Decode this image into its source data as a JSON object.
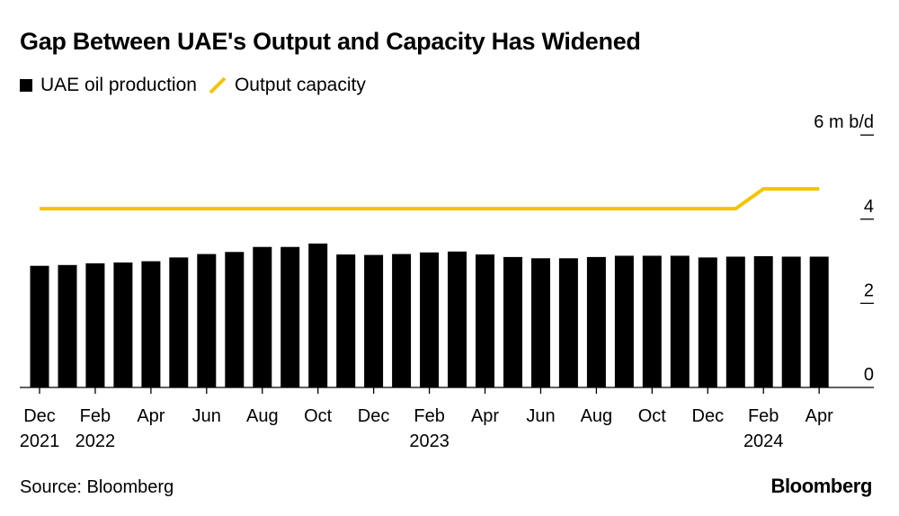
{
  "title": "Gap Between UAE's Output and Capacity Has Widened",
  "legend": {
    "production_label": "UAE oil production",
    "capacity_label": "Output capacity"
  },
  "source": "Source: Bloomberg",
  "brand": "Bloomberg",
  "colors": {
    "production": "#000000",
    "capacity": "#f5c400"
  },
  "chart_data": {
    "type": "bar",
    "title": "Gap Between UAE's Output and Capacity Has Widened",
    "unit_label": "6 m b/d",
    "ylim": [
      0,
      6
    ],
    "y_ticks": [
      {
        "value": 0,
        "label": "0"
      },
      {
        "value": 2,
        "label": "2"
      },
      {
        "value": 4,
        "label": "4"
      },
      {
        "value": 6,
        "label": "6 m b/d"
      }
    ],
    "grid": false,
    "legend_position": "top-left",
    "categories": [
      "2021-12",
      "2022-01",
      "2022-02",
      "2022-03",
      "2022-04",
      "2022-05",
      "2022-06",
      "2022-07",
      "2022-08",
      "2022-09",
      "2022-10",
      "2022-11",
      "2022-12",
      "2023-01",
      "2023-02",
      "2023-03",
      "2023-04",
      "2023-05",
      "2023-06",
      "2023-07",
      "2023-08",
      "2023-09",
      "2023-10",
      "2023-11",
      "2023-12",
      "2024-01",
      "2024-02",
      "2024-03",
      "2024-04"
    ],
    "x_tick_labels": [
      {
        "index": 0,
        "label": "Dec",
        "year": "2021"
      },
      {
        "index": 2,
        "label": "Feb",
        "year": "2022"
      },
      {
        "index": 4,
        "label": "Apr",
        "year": ""
      },
      {
        "index": 6,
        "label": "Jun",
        "year": ""
      },
      {
        "index": 8,
        "label": "Aug",
        "year": ""
      },
      {
        "index": 10,
        "label": "Oct",
        "year": ""
      },
      {
        "index": 12,
        "label": "Dec",
        "year": ""
      },
      {
        "index": 14,
        "label": "Feb",
        "year": "2023"
      },
      {
        "index": 16,
        "label": "Apr",
        "year": ""
      },
      {
        "index": 18,
        "label": "Jun",
        "year": ""
      },
      {
        "index": 20,
        "label": "Aug",
        "year": ""
      },
      {
        "index": 22,
        "label": "Oct",
        "year": ""
      },
      {
        "index": 24,
        "label": "Dec",
        "year": ""
      },
      {
        "index": 26,
        "label": "Feb",
        "year": "2024"
      },
      {
        "index": 28,
        "label": "Apr",
        "year": ""
      }
    ],
    "series": [
      {
        "name": "UAE oil production",
        "type": "bar",
        "values": [
          2.89,
          2.91,
          2.95,
          2.97,
          3.0,
          3.09,
          3.17,
          3.22,
          3.34,
          3.34,
          3.42,
          3.16,
          3.15,
          3.17,
          3.21,
          3.23,
          3.16,
          3.1,
          3.07,
          3.07,
          3.1,
          3.13,
          3.13,
          3.13,
          3.09,
          3.11,
          3.12,
          3.11,
          3.11
        ]
      },
      {
        "name": "Output capacity",
        "type": "line",
        "values": [
          4.25,
          4.25,
          4.25,
          4.25,
          4.25,
          4.25,
          4.25,
          4.25,
          4.25,
          4.25,
          4.25,
          4.25,
          4.25,
          4.25,
          4.25,
          4.25,
          4.25,
          4.25,
          4.25,
          4.25,
          4.25,
          4.25,
          4.25,
          4.25,
          4.25,
          4.25,
          4.72,
          4.72,
          4.72
        ]
      }
    ]
  }
}
